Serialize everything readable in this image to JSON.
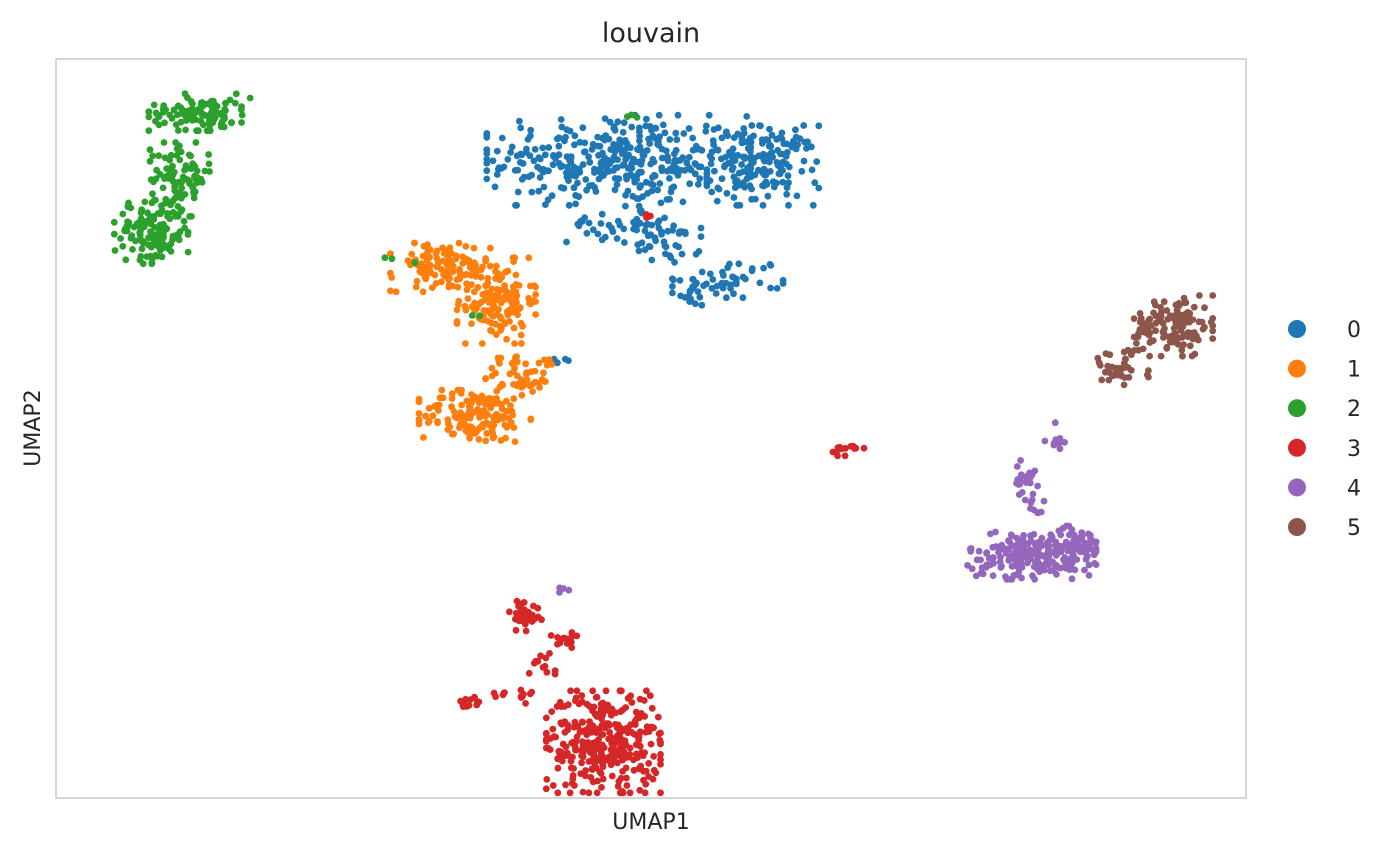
{
  "chart_data": {
    "type": "scatter",
    "title": "louvain",
    "xlabel": "UMAP1",
    "ylabel": "UMAP2",
    "xlim": [
      0,
      100
    ],
    "ylim": [
      0,
      100
    ],
    "grid": false,
    "axis_ticks": false,
    "legend_position": "right",
    "legend": [
      {
        "label": "0",
        "color": "#1f77b4"
      },
      {
        "label": "1",
        "color": "#ff7f0e"
      },
      {
        "label": "2",
        "color": "#2ca02c"
      },
      {
        "label": "3",
        "color": "#d62728"
      },
      {
        "label": "4",
        "color": "#9467bd"
      },
      {
        "label": "5",
        "color": "#8c564b"
      }
    ],
    "series": [
      {
        "name": "0",
        "color": "#1f77b4",
        "clusters": [
          {
            "cx": 47.3,
            "cy": 86.3,
            "rx": 11.1,
            "ry": 6.1,
            "n": 360
          },
          {
            "cx": 59.4,
            "cy": 85.6,
            "rx": 4.7,
            "ry": 5.4,
            "n": 160
          },
          {
            "cx": 51.4,
            "cy": 75.2,
            "rx": 2.8,
            "ry": 2.9,
            "n": 35
          },
          {
            "cx": 47.4,
            "cy": 77.6,
            "rx": 4.5,
            "ry": 2.5,
            "n": 45
          },
          {
            "cx": 57.3,
            "cy": 70.3,
            "rx": 3.8,
            "ry": 2.6,
            "n": 40
          },
          {
            "cx": 53.4,
            "cy": 68.6,
            "rx": 1.6,
            "ry": 2.0,
            "n": 22
          },
          {
            "cx": 42.9,
            "cy": 59.3,
            "rx": 1.1,
            "ry": 0.9,
            "n": 4
          }
        ]
      },
      {
        "name": "1",
        "color": "#ff7f0e",
        "clusters": [
          {
            "cx": 32.3,
            "cy": 71.8,
            "rx": 4.2,
            "ry": 3.3,
            "n": 110
          },
          {
            "cx": 37.0,
            "cy": 67.3,
            "rx": 3.3,
            "ry": 5.8,
            "n": 140
          },
          {
            "cx": 35.2,
            "cy": 51.6,
            "rx": 4.7,
            "ry": 3.6,
            "n": 150
          },
          {
            "cx": 38.6,
            "cy": 57.0,
            "rx": 2.5,
            "ry": 3.3,
            "n": 40
          },
          {
            "cx": 40.7,
            "cy": 57.4,
            "rx": 2.1,
            "ry": 2.3,
            "n": 14
          }
        ]
      },
      {
        "name": "2",
        "color": "#2ca02c",
        "clusters": [
          {
            "cx": 12.1,
            "cy": 92.8,
            "rx": 4.3,
            "ry": 2.5,
            "n": 110
          },
          {
            "cx": 10.4,
            "cy": 83.7,
            "rx": 2.5,
            "ry": 5.0,
            "n": 100
          },
          {
            "cx": 8.0,
            "cy": 76.6,
            "rx": 3.1,
            "ry": 4.3,
            "n": 130
          },
          {
            "cx": 48.4,
            "cy": 92.5,
            "rx": 1.5,
            "ry": 0.6,
            "n": 3
          },
          {
            "cx": 29.0,
            "cy": 73.0,
            "rx": 2.0,
            "ry": 1.2,
            "n": 3
          },
          {
            "cx": 34.8,
            "cy": 65.1,
            "rx": 0.8,
            "ry": 1.1,
            "n": 2
          }
        ]
      },
      {
        "name": "3",
        "color": "#d62728",
        "clusters": [
          {
            "cx": 46.0,
            "cy": 7.6,
            "rx": 4.8,
            "ry": 6.9,
            "n": 330
          },
          {
            "cx": 40.8,
            "cy": 18.2,
            "rx": 1.6,
            "ry": 1.7,
            "n": 12
          },
          {
            "cx": 39.4,
            "cy": 24.8,
            "rx": 1.4,
            "ry": 2.2,
            "n": 35
          },
          {
            "cx": 43.0,
            "cy": 21.4,
            "rx": 1.4,
            "ry": 1.8,
            "n": 14
          },
          {
            "cx": 38.1,
            "cy": 13.9,
            "rx": 2.1,
            "ry": 1.1,
            "n": 14
          },
          {
            "cx": 35.1,
            "cy": 12.8,
            "rx": 1.1,
            "ry": 1.2,
            "n": 12
          },
          {
            "cx": 66.5,
            "cy": 47.2,
            "rx": 1.4,
            "ry": 0.9,
            "n": 14
          },
          {
            "cx": 50.2,
            "cy": 78.7,
            "rx": 0.6,
            "ry": 0.3,
            "n": 3
          }
        ]
      },
      {
        "name": "4",
        "color": "#9467bd",
        "clusters": [
          {
            "cx": 82.0,
            "cy": 32.8,
            "rx": 5.4,
            "ry": 3.2,
            "n": 200
          },
          {
            "cx": 85.6,
            "cy": 34.0,
            "rx": 2.2,
            "ry": 2.8,
            "n": 50
          },
          {
            "cx": 81.8,
            "cy": 42.2,
            "rx": 1.3,
            "ry": 3.6,
            "n": 30
          },
          {
            "cx": 84.2,
            "cy": 48.8,
            "rx": 1.1,
            "ry": 2.5,
            "n": 10
          },
          {
            "cx": 42.5,
            "cy": 28.2,
            "rx": 0.7,
            "ry": 0.5,
            "n": 4
          }
        ]
      },
      {
        "name": "5",
        "color": "#8c564b",
        "clusters": [
          {
            "cx": 93.9,
            "cy": 63.9,
            "rx": 3.3,
            "ry": 4.1,
            "n": 130
          },
          {
            "cx": 89.2,
            "cy": 58.0,
            "rx": 2.6,
            "ry": 2.6,
            "n": 35
          }
        ]
      }
    ]
  }
}
